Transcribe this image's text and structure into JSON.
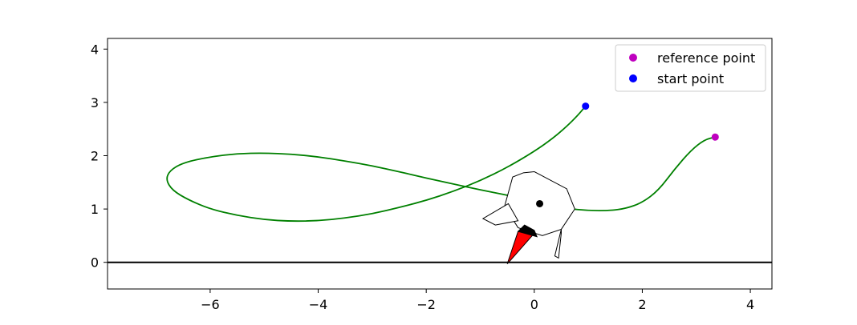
{
  "chart_data": {
    "type": "line",
    "title": "",
    "xlabel": "",
    "ylabel": "",
    "xlim": [
      -7.9,
      4.4
    ],
    "ylim": [
      -0.5,
      4.2
    ],
    "x_ticks": [
      -6,
      -4,
      -2,
      0,
      2,
      4
    ],
    "y_ticks": [
      0,
      1,
      2,
      3,
      4
    ],
    "x_tick_labels": [
      "−6",
      "−4",
      "−2",
      "0",
      "2",
      "4"
    ],
    "y_tick_labels": [
      "0",
      "1",
      "2",
      "3",
      "4"
    ],
    "grid": false,
    "legend_position": "top-right",
    "baseline": {
      "y": 0,
      "color": "#000000"
    },
    "series": [
      {
        "style": "line",
        "color": "#008000",
        "points": [
          [
            0.95,
            2.93
          ],
          [
            0.8,
            2.75
          ],
          [
            0.6,
            2.55
          ],
          [
            0.35,
            2.33
          ],
          [
            0.0,
            2.08
          ],
          [
            -0.5,
            1.78
          ],
          [
            -1.0,
            1.53
          ],
          [
            -1.5,
            1.33
          ],
          [
            -2.0,
            1.16
          ],
          [
            -2.5,
            1.03
          ],
          [
            -3.0,
            0.91
          ],
          [
            -3.5,
            0.83
          ],
          [
            -4.0,
            0.78
          ],
          [
            -4.5,
            0.77
          ],
          [
            -5.0,
            0.8
          ],
          [
            -5.5,
            0.88
          ],
          [
            -6.0,
            1.0
          ],
          [
            -6.4,
            1.17
          ],
          [
            -6.7,
            1.35
          ],
          [
            -6.82,
            1.55
          ],
          [
            -6.75,
            1.72
          ],
          [
            -6.5,
            1.87
          ],
          [
            -6.0,
            1.98
          ],
          [
            -5.5,
            2.04
          ],
          [
            -5.0,
            2.05
          ],
          [
            -4.5,
            2.03
          ],
          [
            -4.0,
            1.98
          ],
          [
            -3.5,
            1.9
          ],
          [
            -3.0,
            1.81
          ],
          [
            -2.5,
            1.7
          ],
          [
            -2.0,
            1.58
          ],
          [
            -1.5,
            1.47
          ],
          [
            -1.0,
            1.36
          ],
          [
            -0.5,
            1.26
          ],
          [
            0.0,
            1.15
          ],
          [
            0.3,
            1.07
          ],
          [
            0.6,
            1.01
          ],
          [
            1.0,
            0.97
          ],
          [
            1.4,
            0.97
          ],
          [
            1.7,
            1.01
          ],
          [
            2.0,
            1.12
          ],
          [
            2.3,
            1.35
          ],
          [
            2.6,
            1.75
          ],
          [
            2.9,
            2.1
          ],
          [
            3.15,
            2.3
          ],
          [
            3.35,
            2.35
          ]
        ]
      },
      {
        "name": "reference point",
        "style": "marker",
        "color": "#bf00bf",
        "points": [
          [
            3.35,
            2.35
          ]
        ]
      },
      {
        "name": "start point",
        "style": "marker",
        "color": "#0000ff",
        "points": [
          [
            0.95,
            2.93
          ]
        ]
      }
    ],
    "vehicle": {
      "hull": [
        [
          0.0,
          1.7
        ],
        [
          0.6,
          1.38
        ],
        [
          0.75,
          1.0
        ],
        [
          0.5,
          0.62
        ],
        [
          0.15,
          0.5
        ],
        [
          -0.3,
          0.65
        ],
        [
          -0.55,
          1.05
        ],
        [
          -0.4,
          1.6
        ],
        [
          -0.2,
          1.68
        ]
      ],
      "center": [
        0.1,
        1.1
      ],
      "left_leg": [
        [
          -0.48,
          1.1
        ],
        [
          -0.3,
          0.78
        ],
        [
          -0.72,
          0.7
        ],
        [
          -0.95,
          0.82
        ]
      ],
      "right_leg": [
        [
          0.5,
          0.62
        ],
        [
          0.38,
          0.12
        ],
        [
          0.45,
          0.08
        ],
        [
          0.5,
          0.55
        ]
      ],
      "nozzle": [
        [
          -0.18,
          0.7
        ],
        [
          -0.3,
          0.58
        ],
        [
          0.05,
          0.48
        ],
        [
          0.0,
          0.6
        ]
      ],
      "flame": [
        [
          -0.3,
          0.58
        ],
        [
          -0.02,
          0.52
        ],
        [
          -0.5,
          -0.03
        ]
      ],
      "outline_color": "#000000",
      "flame_color": "#ff0000",
      "nozzle_color": "#000000"
    }
  }
}
